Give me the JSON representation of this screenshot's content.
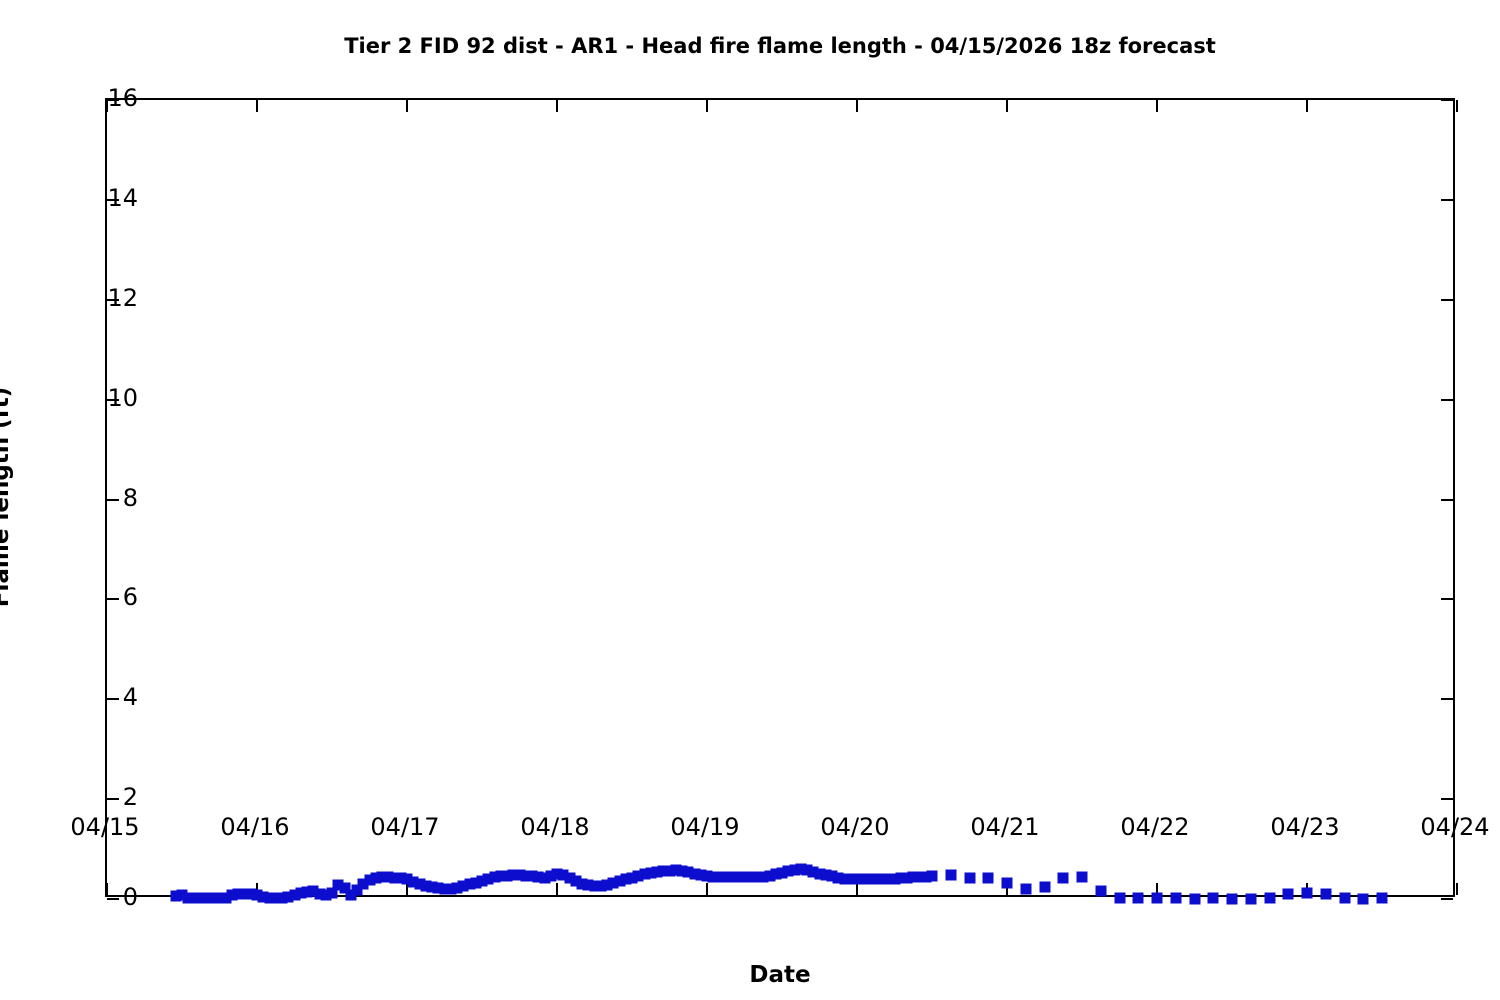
{
  "title": "Tier 2 FID 92 dist - AR1 - Head fire flame length - 04/15/2026 18z forecast",
  "colors": {
    "marker": "#0d0dcd",
    "axis": "#000000",
    "background": "#ffffff"
  },
  "chart_data": {
    "type": "scatter",
    "marker": "square",
    "grid": false,
    "legend": "none",
    "title": "Tier 2 FID 92 dist - AR1 - Head fire flame length - 04/15/2026 18z forecast",
    "xlabel": "Date",
    "ylabel": "Flame length (ft)",
    "x_axis": {
      "tick_labels": [
        "04/15",
        "04/16",
        "04/17",
        "04/18",
        "04/19",
        "04/20",
        "04/21",
        "04/22",
        "04/23",
        "04/24"
      ],
      "unit": "hours since 04/15 00:00",
      "range_hours": [
        0,
        216
      ]
    },
    "y_axis": {
      "tick_labels": [
        "0",
        "2",
        "4",
        "6",
        "8",
        "10",
        "12",
        "14",
        "16"
      ],
      "tick_values": [
        0,
        2,
        4,
        6,
        8,
        10,
        12,
        14,
        16
      ],
      "range": [
        0,
        16
      ]
    },
    "series": [
      {
        "name": "Head fire flame length (ft)",
        "points": [
          [
            11,
            0.06
          ],
          [
            12,
            0.08
          ],
          [
            13,
            0.03
          ],
          [
            14,
            0.02
          ],
          [
            15,
            0.02
          ],
          [
            16,
            0.02
          ],
          [
            17,
            0.02
          ],
          [
            18,
            0.02
          ],
          [
            19,
            0.03
          ],
          [
            20,
            0.08
          ],
          [
            21,
            0.1
          ],
          [
            22,
            0.1
          ],
          [
            23,
            0.1
          ],
          [
            24,
            0.08
          ],
          [
            25,
            0.04
          ],
          [
            26,
            0.03
          ],
          [
            27,
            0.03
          ],
          [
            28,
            0.03
          ],
          [
            29,
            0.04
          ],
          [
            30,
            0.08
          ],
          [
            31,
            0.12
          ],
          [
            32,
            0.14
          ],
          [
            33,
            0.16
          ],
          [
            34,
            0.1
          ],
          [
            35,
            0.08
          ],
          [
            36,
            0.12
          ],
          [
            37,
            0.28
          ],
          [
            38,
            0.22
          ],
          [
            39,
            0.08
          ],
          [
            40,
            0.18
          ],
          [
            41,
            0.3
          ],
          [
            42,
            0.38
          ],
          [
            43,
            0.42
          ],
          [
            44,
            0.44
          ],
          [
            45,
            0.44
          ],
          [
            46,
            0.43
          ],
          [
            47,
            0.42
          ],
          [
            48,
            0.4
          ],
          [
            49,
            0.34
          ],
          [
            50,
            0.3
          ],
          [
            51,
            0.26
          ],
          [
            52,
            0.24
          ],
          [
            53,
            0.22
          ],
          [
            54,
            0.2
          ],
          [
            55,
            0.2
          ],
          [
            56,
            0.22
          ],
          [
            57,
            0.26
          ],
          [
            58,
            0.3
          ],
          [
            59,
            0.32
          ],
          [
            60,
            0.36
          ],
          [
            61,
            0.4
          ],
          [
            62,
            0.44
          ],
          [
            63,
            0.46
          ],
          [
            64,
            0.47
          ],
          [
            65,
            0.48
          ],
          [
            66,
            0.48
          ],
          [
            67,
            0.47
          ],
          [
            68,
            0.46
          ],
          [
            69,
            0.44
          ],
          [
            70,
            0.43
          ],
          [
            71,
            0.46
          ],
          [
            72,
            0.5
          ],
          [
            73,
            0.48
          ],
          [
            74,
            0.42
          ],
          [
            75,
            0.36
          ],
          [
            76,
            0.3
          ],
          [
            77,
            0.28
          ],
          [
            78,
            0.27
          ],
          [
            79,
            0.27
          ],
          [
            80,
            0.28
          ],
          [
            81,
            0.32
          ],
          [
            82,
            0.36
          ],
          [
            83,
            0.4
          ],
          [
            84,
            0.43
          ],
          [
            85,
            0.46
          ],
          [
            86,
            0.5
          ],
          [
            87,
            0.53
          ],
          [
            88,
            0.55
          ],
          [
            89,
            0.56
          ],
          [
            90,
            0.57
          ],
          [
            91,
            0.58
          ],
          [
            92,
            0.56
          ],
          [
            93,
            0.54
          ],
          [
            94,
            0.51
          ],
          [
            95,
            0.48
          ],
          [
            96,
            0.46
          ],
          [
            97,
            0.45
          ],
          [
            98,
            0.44
          ],
          [
            99,
            0.44
          ],
          [
            100,
            0.44
          ],
          [
            101,
            0.44
          ],
          [
            102,
            0.44
          ],
          [
            103,
            0.44
          ],
          [
            104,
            0.44
          ],
          [
            105,
            0.45
          ],
          [
            106,
            0.47
          ],
          [
            107,
            0.5
          ],
          [
            108,
            0.53
          ],
          [
            109,
            0.56
          ],
          [
            110,
            0.59
          ],
          [
            111,
            0.6
          ],
          [
            112,
            0.58
          ],
          [
            113,
            0.55
          ],
          [
            114,
            0.51
          ],
          [
            115,
            0.48
          ],
          [
            116,
            0.46
          ],
          [
            117,
            0.43
          ],
          [
            118,
            0.41
          ],
          [
            119,
            0.4
          ],
          [
            120,
            0.4
          ],
          [
            121,
            0.4
          ],
          [
            122,
            0.4
          ],
          [
            123,
            0.4
          ],
          [
            124,
            0.4
          ],
          [
            125,
            0.4
          ],
          [
            126,
            0.41
          ],
          [
            127,
            0.42
          ],
          [
            128,
            0.43
          ],
          [
            129,
            0.44
          ],
          [
            130,
            0.45
          ],
          [
            131,
            0.45
          ],
          [
            132,
            0.46
          ],
          [
            135,
            0.48
          ],
          [
            138,
            0.42
          ],
          [
            141,
            0.42
          ],
          [
            144,
            0.33
          ],
          [
            147,
            0.2
          ],
          [
            150,
            0.24
          ],
          [
            153,
            0.42
          ],
          [
            156,
            0.44
          ],
          [
            159,
            0.17
          ],
          [
            162,
            0.02
          ],
          [
            165,
            0.02
          ],
          [
            168,
            0.02
          ],
          [
            171,
            0.02
          ],
          [
            174,
            0.0
          ],
          [
            177,
            0.02
          ],
          [
            180,
            0.0
          ],
          [
            183,
            0.0
          ],
          [
            186,
            0.02
          ],
          [
            189,
            0.1
          ],
          [
            192,
            0.12
          ],
          [
            195,
            0.1
          ],
          [
            198,
            0.02
          ],
          [
            201,
            0.0
          ],
          [
            204,
            0.02
          ]
        ]
      }
    ]
  }
}
